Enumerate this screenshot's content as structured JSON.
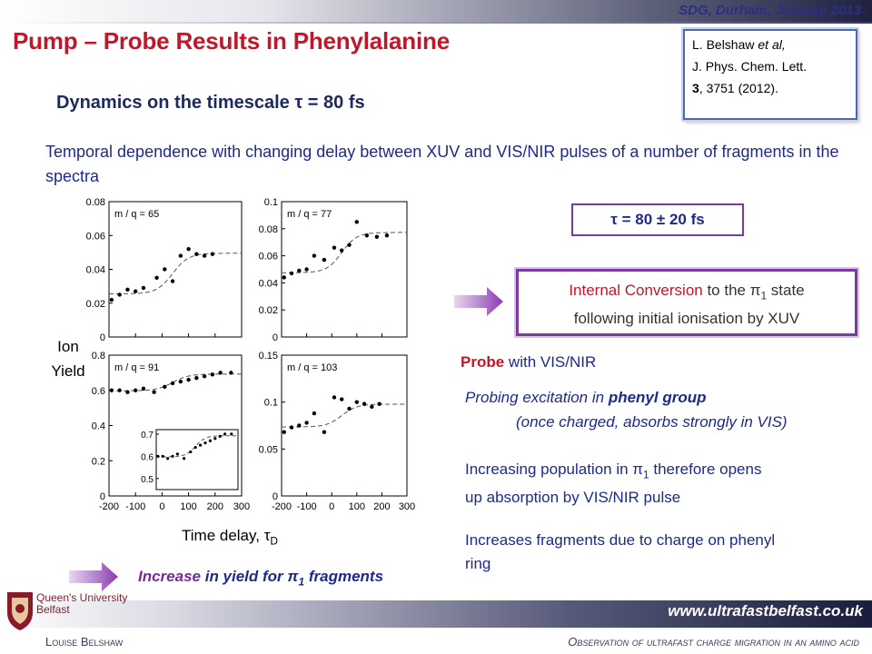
{
  "header": {
    "conference": "SDG, Durham, January 2013"
  },
  "title": "Pump – Probe Results in Phenylalanine",
  "reference": {
    "authors": "L. Belshaw",
    "et_al": "et al,",
    "journal": "J. Phys. Chem. Lett.",
    "volume": "3",
    "pages": ", 3751 (2012)."
  },
  "subtitle": "Dynamics on the timescale τ = 80 fs",
  "intro": "Temporal dependence with changing delay between XUV and VIS/NIR pulses of a number of fragments in the spectra",
  "tau_result": "τ = 80 ± 20 fs",
  "internal_conversion": {
    "highlight": "Internal Conversion",
    "line1_rest": " to the π",
    "sub": "1",
    "line1_end": " state",
    "line2": "following initial ionisation by XUV"
  },
  "probe": {
    "bold": "Probe",
    "rest": " with VIS/NIR"
  },
  "probing": {
    "line1_start": "Probing excitation in ",
    "line1_bold": "phenyl group",
    "line2": "(once charged, absorbs strongly in VIS)"
  },
  "population": {
    "line1_start": "Increasing population in π",
    "sub": "1",
    "line1_end": " therefore opens",
    "line2": "up absorption by VIS/NIR pulse"
  },
  "fragments_text": {
    "line1": "Increases fragments due to charge on phenyl",
    "line2": "ring"
  },
  "axis": {
    "ylabel_1": "Ion",
    "ylabel_2": "Yield",
    "xlabel": "Time delay, τ",
    "xlabel_sub": "D"
  },
  "conclusion": {
    "word": "Increase",
    "rest": " in yield for π",
    "sub": "1",
    "end": " fragments"
  },
  "footer": {
    "url": "www.ultrafastbelfast.co.uk",
    "author": "Louise Belshaw",
    "note": "Observation of ultrafast charge migration in an amino acid",
    "logo_text_1": "Queen's University",
    "logo_text_2": "Belfast"
  },
  "colors": {
    "title_red": "#c0182a",
    "text_blue": "#1d2a8c",
    "accent_purple": "#7a3aa0"
  },
  "chart_data": [
    {
      "type": "scatter",
      "title": "m / q = 65",
      "xlabel": "",
      "ylabel": "",
      "xlim": [
        -200,
        300
      ],
      "ylim": [
        0,
        0.08
      ],
      "yticks": [
        "0",
        "0.02",
        "0.04",
        "0.06",
        "0.08"
      ],
      "xticks": [
        "-200",
        "-100",
        "0",
        "100",
        "200",
        "300"
      ],
      "x": [
        -190,
        -160,
        -130,
        -100,
        -70,
        -20,
        10,
        40,
        70,
        100,
        130,
        160,
        190
      ],
      "y": [
        0.022,
        0.025,
        0.028,
        0.027,
        0.029,
        0.035,
        0.04,
        0.033,
        0.048,
        0.052,
        0.049,
        0.048,
        0.049
      ],
      "fit": "sigmoid step from 0.026 to 0.049"
    },
    {
      "type": "scatter",
      "title": "m / q = 77",
      "xlabel": "",
      "ylabel": "",
      "xlim": [
        -200,
        300
      ],
      "ylim": [
        0,
        0.1
      ],
      "yticks": [
        "0",
        "0.02",
        "0.04",
        "0.06",
        "0.08",
        "0.1"
      ],
      "xticks": [
        "-200",
        "-100",
        "0",
        "100",
        "200",
        "300"
      ],
      "x": [
        -190,
        -160,
        -130,
        -100,
        -70,
        -30,
        10,
        40,
        70,
        100,
        140,
        180,
        220
      ],
      "y": [
        0.044,
        0.047,
        0.049,
        0.05,
        0.06,
        0.057,
        0.066,
        0.064,
        0.068,
        0.085,
        0.075,
        0.074,
        0.075
      ],
      "fit": "sigmoid step from 0.050 to 0.075"
    },
    {
      "type": "scatter",
      "title": "m / q = 91",
      "xlabel": "",
      "ylabel": "",
      "xlim": [
        -200,
        300
      ],
      "ylim": [
        0,
        0.8
      ],
      "yticks": [
        "0",
        "0.2",
        "0.4",
        "0.6",
        "0.8"
      ],
      "xticks": [
        "-200",
        "-100",
        "0",
        "100",
        "200",
        "300"
      ],
      "x": [
        -190,
        -160,
        -130,
        -100,
        -70,
        -30,
        10,
        40,
        70,
        100,
        130,
        160,
        190,
        220,
        260
      ],
      "y": [
        0.6,
        0.6,
        0.59,
        0.6,
        0.61,
        0.59,
        0.62,
        0.64,
        0.65,
        0.66,
        0.67,
        0.68,
        0.69,
        0.7,
        0.7
      ],
      "fit": "sigmoid step from 0.60 to 0.70",
      "inset": {
        "yticks": [
          "0.5",
          "0.6",
          "0.7"
        ],
        "ylim": [
          0.45,
          0.72
        ]
      }
    },
    {
      "type": "scatter",
      "title": "m / q = 103",
      "xlabel": "",
      "ylabel": "",
      "xlim": [
        -200,
        300
      ],
      "ylim": [
        0,
        0.15
      ],
      "yticks": [
        "0",
        "0.05",
        "0.1",
        "0.15"
      ],
      "xticks": [
        "-200",
        "-100",
        "0",
        "100",
        "200",
        "300"
      ],
      "x": [
        -190,
        -160,
        -130,
        -100,
        -70,
        -30,
        10,
        40,
        70,
        100,
        130,
        160,
        190
      ],
      "y": [
        0.068,
        0.073,
        0.075,
        0.078,
        0.088,
        0.068,
        0.105,
        0.103,
        0.093,
        0.1,
        0.098,
        0.095,
        0.098
      ],
      "fit": "sigmoid step from 0.078 to 0.103"
    }
  ]
}
